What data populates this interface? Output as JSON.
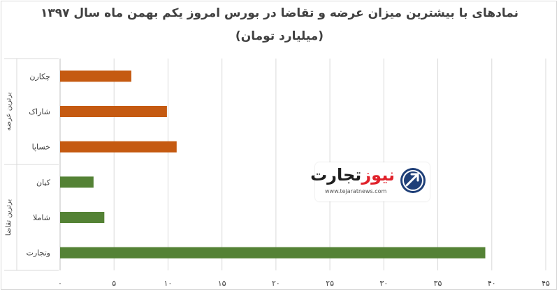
{
  "title_line1": "نمادهای با بیشترین میزان عرضه و تقاضا در بورس امروز یکم بهمن ماه سال ۱۳۹۷",
  "title_line2": "(میلیارد تومان)",
  "logo": {
    "word1": "تجارت",
    "word2": "نیوز",
    "url": "www.tejaratnews.com",
    "icon": "tejarat-news-logo-icon"
  },
  "chart_data": {
    "type": "bar",
    "orientation": "horizontal",
    "title": "نمادهای با بیشترین میزان عرضه و تقاضا در بورس امروز یکم بهمن ماه سال ۱۳۹۷",
    "subtitle": "(میلیارد تومان)",
    "categories": [
      "چکارن",
      "شاراک",
      "خساپا",
      "کیان",
      "شاملا",
      "وتجارت"
    ],
    "values": [
      6.6,
      9.9,
      10.8,
      3.1,
      4.1,
      39.4
    ],
    "groups": [
      {
        "label": "برترین عرضه",
        "categories": [
          "چکارن",
          "شاراک",
          "خساپا"
        ],
        "color": "#c55a11"
      },
      {
        "label": "برترین تقاضا",
        "categories": [
          "کیان",
          "شاملا",
          "وتجارت"
        ],
        "color": "#548235"
      }
    ],
    "xlim": [
      0,
      45
    ],
    "xticks": [
      0,
      5,
      10,
      15,
      20,
      25,
      30,
      35,
      40,
      45
    ],
    "xtick_labels": [
      "۰",
      "۵",
      "۱۰",
      "۱۵",
      "۲۰",
      "۲۵",
      "۳۰",
      "۳۵",
      "۴۰",
      "۴۵"
    ],
    "grid": true,
    "legend": "none"
  }
}
